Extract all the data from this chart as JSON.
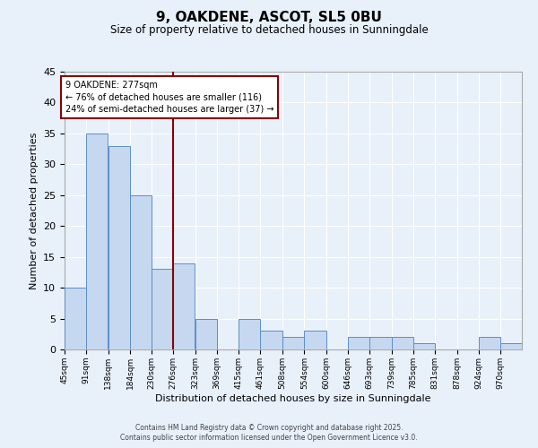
{
  "title": "9, OAKDENE, ASCOT, SL5 0BU",
  "subtitle": "Size of property relative to detached houses in Sunningdale",
  "xlabel": "Distribution of detached houses by size in Sunningdale",
  "ylabel": "Number of detached properties",
  "bins": [
    45,
    91,
    138,
    184,
    230,
    276,
    323,
    369,
    415,
    461,
    508,
    554,
    600,
    646,
    693,
    739,
    785,
    831,
    878,
    924,
    970
  ],
  "counts": [
    10,
    35,
    33,
    25,
    13,
    14,
    5,
    0,
    5,
    3,
    2,
    3,
    0,
    2,
    2,
    2,
    1,
    0,
    0,
    2,
    1
  ],
  "bar_color": "#c5d8f0",
  "bar_edge_color": "#5b8fc9",
  "background_color": "#e8f0fa",
  "grid_color": "#ffffff",
  "vline_x": 276,
  "vline_color": "#8b0000",
  "annotation_title": "9 OAKDENE: 277sqm",
  "annotation_line1": "← 76% of detached houses are smaller (116)",
  "annotation_line2": "24% of semi-detached houses are larger (37) →",
  "annotation_box_color": "#8b0000",
  "ylim": [
    0,
    45
  ],
  "yticks": [
    0,
    5,
    10,
    15,
    20,
    25,
    30,
    35,
    40,
    45
  ],
  "tick_labels": [
    "45sqm",
    "91sqm",
    "138sqm",
    "184sqm",
    "230sqm",
    "276sqm",
    "323sqm",
    "369sqm",
    "415sqm",
    "461sqm",
    "508sqm",
    "554sqm",
    "600sqm",
    "646sqm",
    "693sqm",
    "739sqm",
    "785sqm",
    "831sqm",
    "878sqm",
    "924sqm",
    "970sqm"
  ],
  "footnote1": "Contains HM Land Registry data © Crown copyright and database right 2025.",
  "footnote2": "Contains public sector information licensed under the Open Government Licence v3.0."
}
